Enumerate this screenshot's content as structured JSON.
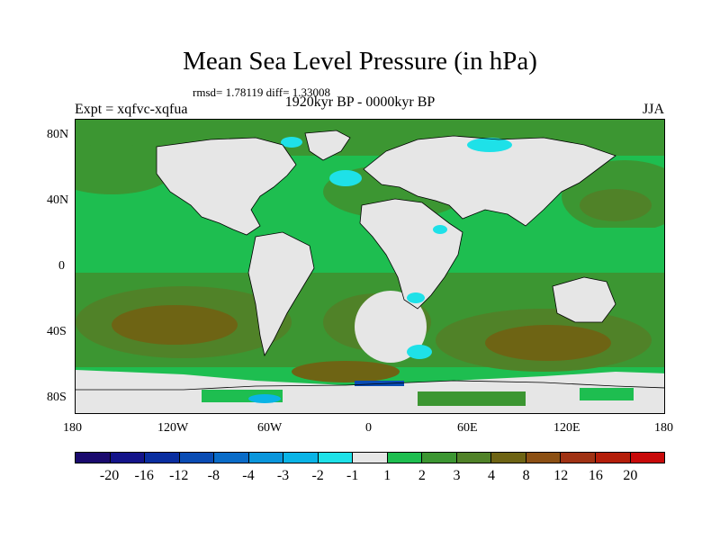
{
  "map": {
    "title": "Mean Sea Level Pressure (in hPa)",
    "stats": "rmsd= 1.78119 diff= 1.33008",
    "period": "1920kyr BP - 0000kyr BP",
    "experiment": "Expt = xqfvc-xqfua",
    "season": "JJA"
  },
  "chart_data": {
    "type": "heatmap",
    "title": "Mean Sea Level Pressure (in hPa)",
    "subtitle": "1920kyr BP - 0000kyr BP",
    "variable": "mean sea level pressure difference",
    "units": "hPa",
    "x_axis": {
      "range": [
        -180,
        180
      ],
      "ticks": [
        -180,
        -120,
        -60,
        0,
        60,
        120,
        180
      ],
      "tick_labels": [
        "180",
        "120W",
        "60W",
        "0",
        "60E",
        "120E",
        "180"
      ]
    },
    "y_axis": {
      "range": [
        -90,
        90
      ],
      "ticks": [
        80,
        40,
        0,
        -40,
        -80
      ],
      "tick_labels": [
        "80N",
        "40N",
        "0",
        "40S",
        "80S"
      ]
    },
    "colorbar": {
      "levels": [
        "-20",
        "-16",
        "-12",
        "-8",
        "-4",
        "-3",
        "-2",
        "-1",
        "1",
        "2",
        "3",
        "4",
        "8",
        "12",
        "16",
        "20"
      ],
      "colors": [
        "#1a0a6e",
        "#14148a",
        "#0a2ea0",
        "#0a4cb4",
        "#0a6cc8",
        "#0a96dc",
        "#0ab4e6",
        "#1ee1e8",
        "#e6e6e6",
        "#1ebe50",
        "#3c9632",
        "#508228",
        "#6e6414",
        "#8c5014",
        "#a03214",
        "#b41e0a",
        "#c80a0a"
      ]
    },
    "pattern": {
      "land": "mostly -1 to 1",
      "tropical_oceans": "1 to 2",
      "mid_latitude_oceans": "3 to 8",
      "southern_ocean": "4 to 8",
      "local_minima": "-3 to -1 over parts of Greenland, Norwegian Sea, Arctic Siberia, southern Africa, South Atlantic, Antarctic coast"
    }
  }
}
